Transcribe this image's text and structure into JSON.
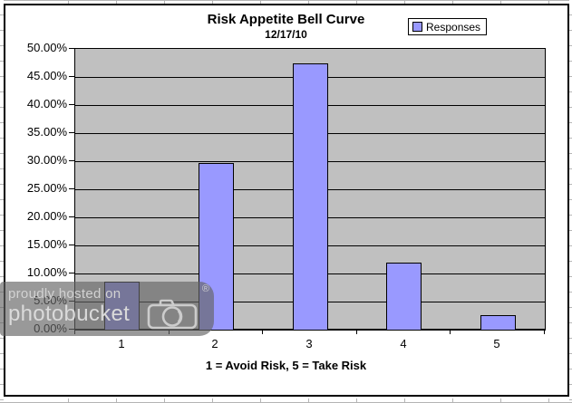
{
  "chart": {
    "title": "Risk Appetite Bell Curve",
    "subtitle": "12/17/10",
    "legend_label": "Responses",
    "x_axis_title": "1 = Avoid Risk, 5 = Take Risk",
    "y_tick_labels": [
      "50.00%",
      "45.00%",
      "40.00%",
      "35.00%",
      "30.00%",
      "25.00%",
      "20.00%",
      "15.00%",
      "10.00%",
      "5.00%",
      "0.00%"
    ],
    "x_tick_labels": [
      "1",
      "2",
      "3",
      "4",
      "5"
    ]
  },
  "chart_data": {
    "type": "bar",
    "title": "Risk Appetite Bell Curve",
    "subtitle": "12/17/10",
    "categories": [
      "1",
      "2",
      "3",
      "4",
      "5"
    ],
    "series": [
      {
        "name": "Responses",
        "values": [
          8.47,
          29.66,
          47.46,
          11.86,
          2.54
        ]
      }
    ],
    "xlabel": "1 = Avoid Risk, 5 = Take Risk",
    "ylabel": "",
    "ylim": [
      0,
      50
    ],
    "y_tick_step": 5,
    "y_tick_format": "percent_2dp",
    "grid": true,
    "legend_position": "top-right",
    "colors": {
      "bar_fill": "#9999FF",
      "bar_border": "#000000",
      "plot_background": "#C0C0C0",
      "chart_background": "#FFFFFF",
      "gridline": "#000000",
      "text": "#000000"
    }
  },
  "watermark": {
    "line1": "proudly hosted on",
    "line2": "photobucket",
    "registered_mark": "®",
    "camera_icon": "camera-icon"
  }
}
